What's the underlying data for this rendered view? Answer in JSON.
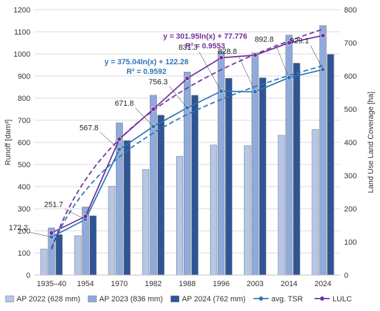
{
  "chart_data": {
    "type": "bar",
    "categories": [
      "1935–40",
      "1954",
      "1970",
      "1982",
      "1988",
      "1996",
      "2003",
      "2014",
      "2024"
    ],
    "ylabel": "Runoff [dam³]",
    "y2label": "Land Use Land Coverage [ha]",
    "ylim": [
      0,
      1200
    ],
    "y2lim": [
      0,
      800
    ],
    "yticks": [
      "0",
      "100",
      "200",
      "300",
      "400",
      "500",
      "600",
      "700",
      "800",
      "900",
      "1000",
      "1100",
      "1200"
    ],
    "y2ticks": [
      "0",
      "100",
      "200",
      "300",
      "400",
      "500",
      "600",
      "700",
      "800"
    ],
    "grid": "horizontal",
    "legend_position": "bottom",
    "bar_series": [
      {
        "name": "AP 2022 (628 mm)",
        "color": "#b4c7e7",
        "values": [
          118,
          178,
          402,
          477,
          537,
          588,
          585,
          632,
          658
        ]
      },
      {
        "name": "AP 2023 (836 mm)",
        "color": "#8faadc",
        "values": [
          213,
          308,
          688,
          813,
          918,
          1012,
          1005,
          1085,
          1128
        ]
      },
      {
        "name": "AP 2024 (762 mm)",
        "color": "#2f5597",
        "values": [
          183,
          268,
          608,
          723,
          813,
          890,
          892,
          958,
          998
        ]
      }
    ],
    "line_series": [
      {
        "name": "avg. TSR",
        "color": "#2e75b6",
        "axis": "left",
        "values": [
          172.2,
          251.7,
          567.8,
          671.8,
          756.3,
          831.3,
          828.8,
          892.8,
          929.1
        ],
        "labels": [
          "172.2",
          "251.7",
          "567.8",
          "671.8",
          "756.3",
          "831.3",
          "828.8",
          "892.8",
          "929.1"
        ]
      },
      {
        "name": "LULC",
        "color": "#7030a0",
        "axis": "right",
        "values": [
          127,
          177,
          410,
          500,
          593,
          655,
          663,
          700,
          722
        ]
      }
    ],
    "trendlines": [
      {
        "series": "avg. TSR",
        "equation": "y = 375.04ln(x) + 122.28",
        "r2": "R² = 0.9592",
        "a": 375.04,
        "b": 122.28,
        "axis": "left"
      },
      {
        "series": "LULC",
        "equation": "y = 301.95ln(x) + 77.776",
        "r2": "R² = 0.9553",
        "a": 301.95,
        "b": 77.776,
        "axis": "right"
      }
    ]
  }
}
